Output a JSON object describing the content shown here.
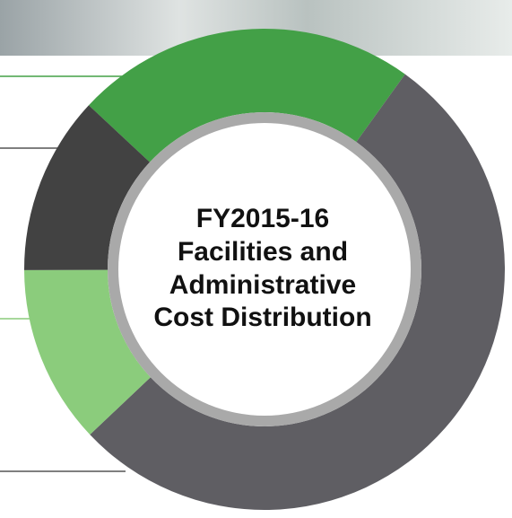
{
  "chart_data": {
    "type": "donut",
    "title_lines": [
      "FY2015-16",
      "Facilities and",
      "Administrative",
      "Cost Distribution"
    ],
    "values": [
      23,
      53,
      12,
      12
    ],
    "colors": [
      "#43a047",
      "#5f5e63",
      "#8bcc7c",
      "#424242"
    ]
  }
}
